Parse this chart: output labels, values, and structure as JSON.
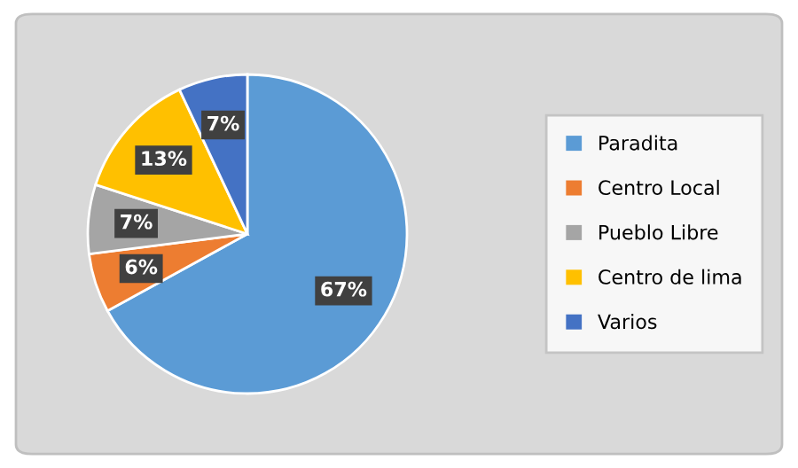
{
  "chart_data": {
    "type": "pie",
    "categories": [
      "Paradita",
      "Centro Local",
      "Pueblo Libre",
      "Centro de lima",
      "Varios"
    ],
    "values": [
      67,
      6,
      7,
      13,
      7
    ],
    "value_labels": [
      "67%",
      "6%",
      "7%",
      "13%",
      "7%"
    ],
    "colors": [
      "#5b9bd5",
      "#ed7d31",
      "#a5a5a5",
      "#ffc000",
      "#4472c4"
    ],
    "legend": "right"
  }
}
